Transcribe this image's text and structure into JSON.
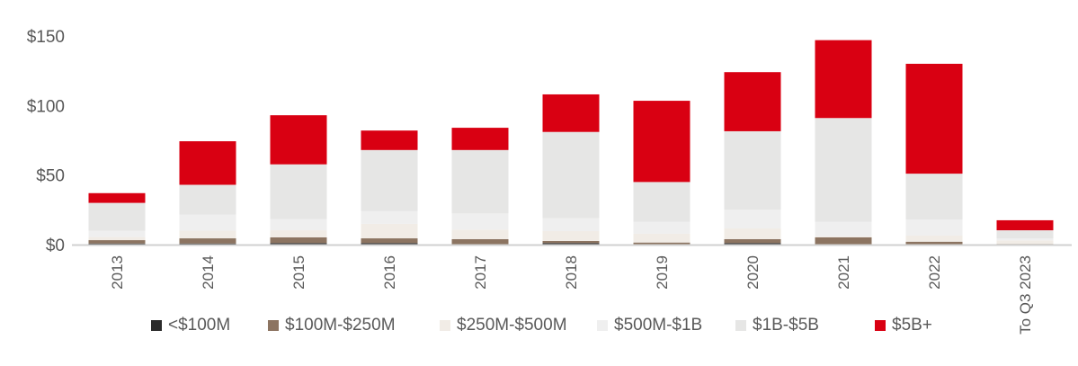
{
  "chart_data": {
    "type": "bar",
    "stacked": true,
    "title": "",
    "xlabel": "",
    "ylabel": "",
    "ylim": [
      0,
      150
    ],
    "yticks": [
      0,
      50,
      100,
      150
    ],
    "ytick_labels": [
      "$0",
      "$50",
      "$100",
      "$150"
    ],
    "grid": false,
    "legend_position": "bottom",
    "categories": [
      "2013",
      "2014",
      "2015",
      "2016",
      "2017",
      "2018",
      "2019",
      "2020",
      "2021",
      "2022",
      "To Q3 2023"
    ],
    "series": [
      {
        "name": "<$100M",
        "color": "#2b2b2b",
        "values": [
          0.8,
          0.8,
          1.1,
          1.1,
          0,
          1.1,
          0,
          1.1,
          0,
          0,
          0
        ]
      },
      {
        "name": "$100M-$250M",
        "color": "#8c7461",
        "values": [
          2.4,
          3.7,
          4.1,
          3.4,
          3.9,
          1.5,
          1.5,
          2.8,
          5.2,
          2.1,
          0.5
        ]
      },
      {
        "name": "$250M-$500M",
        "color": "#f1ece6",
        "values": [
          2.4,
          5.5,
          5.1,
          10.4,
          6.9,
          7.1,
          6.3,
          7.7,
          0.8,
          4.4,
          2.5
        ]
      },
      {
        "name": "$500M-$1B",
        "color": "#efefef",
        "values": [
          4.4,
          11.5,
          8.0,
          9.1,
          11.6,
          9.3,
          8.6,
          13.4,
          10.4,
          11.5,
          1.5
        ]
      },
      {
        "name": "$1B-$5B",
        "color": "#e6e6e5",
        "values": [
          20.0,
          21.5,
          39.4,
          44.0,
          45.6,
          62.0,
          28.6,
          56.5,
          74.6,
          33.0,
          5.8
        ]
      },
      {
        "name": "$5B+",
        "color": "#d90012",
        "values": [
          7.0,
          31.3,
          35.3,
          14.0,
          16.0,
          27.0,
          58.4,
          42.5,
          56.0,
          79.0,
          7.2
        ]
      }
    ]
  }
}
